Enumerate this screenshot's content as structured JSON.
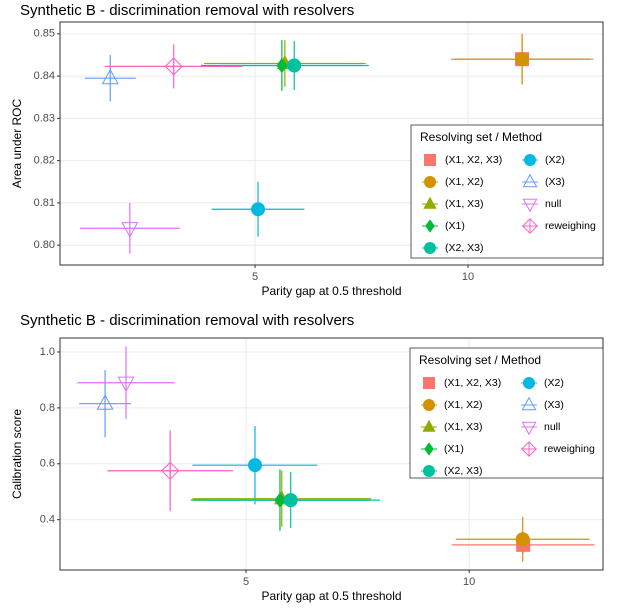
{
  "chart_data": [
    {
      "type": "scatter",
      "title": "Synthetic B - discrimination removal with resolvers",
      "x_label": "Parity gap at 0.5 threshold",
      "y_label": "Area under ROC",
      "xlim": [
        0.42,
        13.17
      ],
      "ylim": [
        0.7953,
        0.8528
      ],
      "xticks": [
        5,
        10
      ],
      "yticks": [
        {
          "value": 0.8,
          "label": "0.80"
        },
        {
          "value": 0.81,
          "label": "0.81"
        },
        {
          "value": 0.82,
          "label": "0.82"
        },
        {
          "value": 0.83,
          "label": "0.83"
        },
        {
          "value": 0.84,
          "label": "0.84"
        },
        {
          "value": 0.85,
          "label": "0.85"
        }
      ],
      "grid": true,
      "legend_title": "Resolving set / Method",
      "legend_position": "right",
      "series": [
        {
          "name": "(X1, X2, X3)",
          "color": "#F8766D",
          "marker": "square",
          "x": [
            11.27
          ],
          "values": [
            0.844
          ],
          "xerr": [
            1.67
          ],
          "yerr": [
            0.006
          ]
        },
        {
          "name": "(X1, X2)",
          "color": "#D39200",
          "marker": "circle",
          "x": [
            11.27
          ],
          "values": [
            0.844
          ],
          "xerr": [
            1.6
          ],
          "yerr": [
            0.0058
          ]
        },
        {
          "name": "(X1, X3)",
          "color": "#93AA00",
          "marker": "triangle",
          "x": [
            5.7
          ],
          "values": [
            0.843
          ],
          "xerr": [
            1.9
          ],
          "yerr": [
            0.0055
          ]
        },
        {
          "name": "(X1)",
          "color": "#00BA38",
          "marker": "diamond",
          "x": [
            5.63
          ],
          "values": [
            0.8425
          ],
          "xerr": [
            1.9
          ],
          "yerr": [
            0.006
          ]
        },
        {
          "name": "(X2, X3)",
          "color": "#00C19F",
          "marker": "circle",
          "x": [
            5.92
          ],
          "values": [
            0.8425
          ],
          "xerr": [
            1.75
          ],
          "yerr": [
            0.0058
          ]
        },
        {
          "name": "(X2)",
          "color": "#00B9E3",
          "marker": "circle",
          "x": [
            5.07
          ],
          "values": [
            0.8085
          ],
          "xerr": [
            1.09
          ],
          "yerr": [
            0.0065
          ]
        },
        {
          "name": "(X3)",
          "color": "#619CFF",
          "marker": "open-triangle",
          "x": [
            1.6
          ],
          "values": [
            0.8395
          ],
          "xerr": [
            0.6
          ],
          "yerr": [
            0.0055
          ]
        },
        {
          "name": "null",
          "color": "#DB72FB",
          "marker": "open-triangle-down",
          "x": [
            2.06
          ],
          "values": [
            0.804
          ],
          "xerr": [
            1.17
          ],
          "yerr": [
            0.006
          ]
        },
        {
          "name": "reweighing",
          "color": "#FF61C3",
          "marker": "diamond-plus",
          "x": [
            3.09
          ],
          "values": [
            0.8423
          ],
          "xerr": [
            1.62
          ],
          "yerr": [
            0.0052
          ]
        }
      ]
    },
    {
      "type": "scatter",
      "title": "Synthetic B - discrimination removal with resolvers",
      "x_label": "Parity gap at 0.5 threshold",
      "y_label": "Calibration score",
      "xlim": [
        0.83,
        13.0
      ],
      "ylim": [
        0.22,
        1.05
      ],
      "xticks": [
        5,
        10
      ],
      "yticks": [
        0.4,
        0.6,
        0.8,
        {
          "value": 1.0,
          "label": "1.0"
        }
      ],
      "grid": true,
      "legend_title": "Resolving set / Method",
      "legend_position": "top-right",
      "series": [
        {
          "name": "(X1, X2, X3)",
          "color": "#F8766D",
          "marker": "square",
          "x": [
            11.21
          ],
          "values": [
            0.31
          ],
          "xerr": [
            1.6
          ],
          "yerr": [
            0.03
          ]
        },
        {
          "name": "(X1, X2)",
          "color": "#D39200",
          "marker": "circle",
          "x": [
            11.2
          ],
          "values": [
            0.33
          ],
          "xerr": [
            1.5
          ],
          "yerr": [
            0.08
          ]
        },
        {
          "name": "(X1, X3)",
          "color": "#93AA00",
          "marker": "triangle",
          "x": [
            5.8
          ],
          "values": [
            0.475
          ],
          "xerr": [
            2.0
          ],
          "yerr": [
            0.1
          ]
        },
        {
          "name": "(X1)",
          "color": "#00BA38",
          "marker": "diamond",
          "x": [
            5.76
          ],
          "values": [
            0.47
          ],
          "xerr": [
            2.0
          ],
          "yerr": [
            0.11
          ]
        },
        {
          "name": "(X2, X3)",
          "color": "#00C19F",
          "marker": "circle",
          "x": [
            6.0
          ],
          "values": [
            0.47
          ],
          "xerr": [
            2.0
          ],
          "yerr": [
            0.1
          ]
        },
        {
          "name": "(X2)",
          "color": "#00B9E3",
          "marker": "circle",
          "x": [
            5.2
          ],
          "values": [
            0.595
          ],
          "xerr": [
            1.4
          ],
          "yerr": [
            0.14
          ]
        },
        {
          "name": "(X3)",
          "color": "#619CFF",
          "marker": "open-triangle",
          "x": [
            1.84
          ],
          "values": [
            0.815
          ],
          "xerr": [
            0.58
          ],
          "yerr": [
            0.12
          ]
        },
        {
          "name": "null",
          "color": "#DB72FB",
          "marker": "open-triangle-down",
          "x": [
            2.31
          ],
          "values": [
            0.89
          ],
          "xerr": [
            1.09
          ],
          "yerr": [
            0.13
          ]
        },
        {
          "name": "reweighing",
          "color": "#FF61C3",
          "marker": "diamond-plus",
          "x": [
            3.3
          ],
          "values": [
            0.575
          ],
          "xerr": [
            1.41
          ],
          "yerr": [
            0.145
          ]
        }
      ]
    }
  ]
}
